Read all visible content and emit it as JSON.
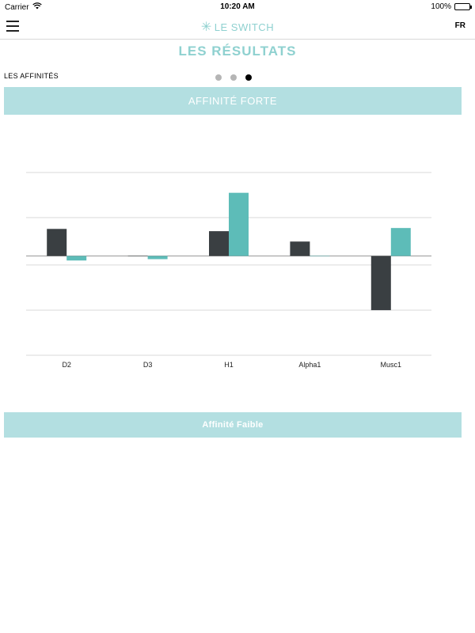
{
  "status_bar": {
    "carrier": "Carrier",
    "time": "10:20 AM",
    "battery_percent": "100%",
    "battery_level": 1.0,
    "wifi_icon": "wifi-icon"
  },
  "nav": {
    "menu_icon": "hamburger-menu-icon",
    "logo_text": "LE SWITCH",
    "logo_icon": "star-burst-icon",
    "language": "FR"
  },
  "page": {
    "title": "LES RÉSULTATS",
    "section_label": "LES AFFINITÉS",
    "pager": {
      "count": 3,
      "active_index": 2
    }
  },
  "banners": {
    "strong": "AFFINITÉ FORTE",
    "weak": "Affinité Faible"
  },
  "colors": {
    "accent": "#8fd1d0",
    "banner": "#b3dfe1",
    "series_dark": "#3a3f42",
    "series_teal": "#5dbcb8",
    "gridline": "#d9d9d9",
    "zero_line": "#999999"
  },
  "chart_data": {
    "type": "bar",
    "categories": [
      "D2",
      "D3",
      "H1",
      "Alpha1",
      "Musc1"
    ],
    "series": [
      {
        "color": "#3a3f42",
        "values": [
          0.6,
          0,
          0.55,
          0.32,
          -1.2
        ]
      },
      {
        "color": "#5dbcb8",
        "values": [
          -0.1,
          -0.07,
          1.4,
          0,
          0.62
        ]
      }
    ],
    "ylim": [
      -2.2,
      1.85
    ],
    "gridlines": [
      1.85,
      0.85,
      -0.2,
      -1.2,
      -2.2
    ],
    "grid": true,
    "title": "",
    "xlabel": "",
    "ylabel": ""
  }
}
